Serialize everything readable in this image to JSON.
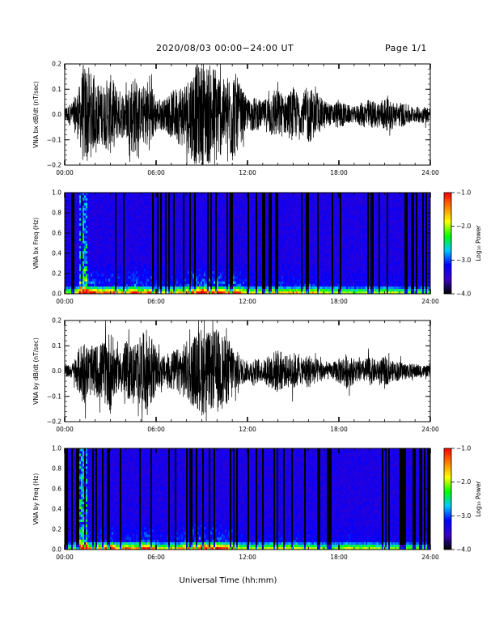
{
  "header": {
    "title": "2020/08/03  00:00−24:00 UT",
    "page_label": "Page 1/1"
  },
  "xlabel": "Universal Time (hh:mm)",
  "colorbar": {
    "label": "Log₁₀ Power",
    "ticks": [
      "−1.0",
      "−2.0",
      "−3.0",
      "−4.0"
    ],
    "range": [
      -4.0,
      -1.0
    ],
    "colors": [
      "#000000",
      "#3a00c8",
      "#0000ff",
      "#00c8ff",
      "#00ff00",
      "#ffff00",
      "#ff8000",
      "#ff0000"
    ]
  },
  "chart_data": [
    {
      "type": "line",
      "ylabel": "VNA bx dB/dt (nT/sec)",
      "x_ticks": [
        "00:00",
        "06:00",
        "12:00",
        "18:00",
        "24:00"
      ],
      "y_ticks": [
        "0.2",
        "0.1",
        "0.0",
        "−0.1",
        "−0.2"
      ],
      "x_range_hours": [
        0,
        24
      ],
      "ylim": [
        -0.2,
        0.2
      ],
      "envelope": {
        "hours": [
          0,
          0.5,
          1,
          1.2,
          1.5,
          2,
          2.5,
          3,
          3.5,
          4,
          4.5,
          5,
          5.5,
          6,
          6.5,
          7,
          7.5,
          8,
          8.5,
          9,
          9.5,
          10,
          10.5,
          11,
          11.5,
          12,
          12.5,
          13,
          13.5,
          14,
          14.5,
          15,
          15.5,
          16,
          16.5,
          17,
          17.5,
          18,
          18.5,
          19,
          19.5,
          20,
          20.5,
          21,
          21.5,
          22,
          22.5,
          23,
          23.5,
          24
        ],
        "amplitude": [
          0.03,
          0.05,
          0.12,
          0.2,
          0.2,
          0.13,
          0.12,
          0.16,
          0.1,
          0.09,
          0.17,
          0.1,
          0.15,
          0.07,
          0.06,
          0.09,
          0.12,
          0.14,
          0.2,
          0.2,
          0.2,
          0.2,
          0.13,
          0.2,
          0.12,
          0.06,
          0.07,
          0.05,
          0.09,
          0.1,
          0.08,
          0.11,
          0.07,
          0.12,
          0.08,
          0.06,
          0.04,
          0.06,
          0.04,
          0.03,
          0.05,
          0.06,
          0.05,
          0.07,
          0.05,
          0.05,
          0.04,
          0.03,
          0.035,
          0.03
        ]
      }
    },
    {
      "type": "heatmap",
      "ylabel": "VNA bx Freq (Hz)",
      "x_ticks": [
        "00:00",
        "06:00",
        "12:00",
        "18:00",
        "24:00"
      ],
      "y_ticks": [
        "1.0",
        "0.8",
        "0.6",
        "0.4",
        "0.2",
        "0.0"
      ],
      "x_range_hours": [
        0,
        24
      ],
      "ylim": [
        0.0,
        1.0
      ],
      "zlim": [
        -4.0,
        -1.0
      ]
    },
    {
      "type": "line",
      "ylabel": "VNA by dB/dt (nT/sec)",
      "x_ticks": [
        "00:00",
        "06:00",
        "12:00",
        "18:00",
        "24:00"
      ],
      "y_ticks": [
        "0.2",
        "0.1",
        "0.0",
        "−0.1",
        "−0.2"
      ],
      "x_range_hours": [
        0,
        24
      ],
      "ylim": [
        -0.2,
        0.2
      ],
      "envelope": {
        "hours": [
          0,
          0.5,
          1,
          1.2,
          1.5,
          2,
          2.5,
          3,
          3.5,
          4,
          4.5,
          5,
          5.5,
          6,
          6.5,
          7,
          7.5,
          8,
          8.5,
          9,
          9.5,
          10,
          10.5,
          11,
          11.5,
          12,
          12.5,
          13,
          13.5,
          14,
          14.5,
          15,
          15.5,
          16,
          16.5,
          17,
          17.5,
          18,
          18.5,
          19,
          19.5,
          20,
          20.5,
          21,
          21.5,
          22,
          22.5,
          23,
          23.5,
          24
        ],
        "amplitude": [
          0.02,
          0.03,
          0.1,
          0.14,
          0.1,
          0.1,
          0.12,
          0.17,
          0.07,
          0.12,
          0.11,
          0.14,
          0.18,
          0.08,
          0.06,
          0.08,
          0.09,
          0.12,
          0.14,
          0.18,
          0.15,
          0.17,
          0.14,
          0.12,
          0.06,
          0.04,
          0.05,
          0.04,
          0.07,
          0.09,
          0.06,
          0.08,
          0.05,
          0.07,
          0.05,
          0.04,
          0.03,
          0.05,
          0.07,
          0.05,
          0.04,
          0.06,
          0.04,
          0.06,
          0.04,
          0.04,
          0.03,
          0.03,
          0.025,
          0.02
        ]
      }
    },
    {
      "type": "heatmap",
      "ylabel": "VNA by Freq (Hz)",
      "x_ticks": [
        "00:00",
        "06:00",
        "12:00",
        "18:00",
        "24:00"
      ],
      "y_ticks": [
        "1.0",
        "0.8",
        "0.6",
        "0.4",
        "0.2",
        "0.0"
      ],
      "x_range_hours": [
        0,
        24
      ],
      "ylim": [
        0.0,
        1.0
      ],
      "zlim": [
        -4.0,
        -1.0
      ]
    }
  ]
}
